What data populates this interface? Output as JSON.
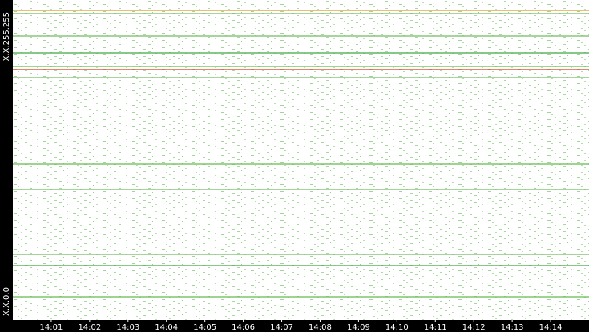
{
  "chart_data": {
    "type": "line",
    "xlim": [
      840,
      855
    ],
    "xticks": [
      {
        "value": 841,
        "label": "14:01"
      },
      {
        "value": 842,
        "label": "14:02"
      },
      {
        "value": 843,
        "label": "14:03"
      },
      {
        "value": 844,
        "label": "14:04"
      },
      {
        "value": 845,
        "label": "14:05"
      },
      {
        "value": 846,
        "label": "14:06"
      },
      {
        "value": 847,
        "label": "14:07"
      },
      {
        "value": 848,
        "label": "14:08"
      },
      {
        "value": 849,
        "label": "14:09"
      },
      {
        "value": 850,
        "label": "14:10"
      },
      {
        "value": 851,
        "label": "14:11"
      },
      {
        "value": 852,
        "label": "14:12"
      },
      {
        "value": 853,
        "label": "14:13"
      },
      {
        "value": 854,
        "label": "14:14"
      }
    ],
    "ylim": [
      0,
      65535
    ],
    "yticks": [
      {
        "value": 65535,
        "label": "X.X.255.255"
      },
      {
        "value": 0,
        "label": "X.X.0.0"
      }
    ],
    "bands": [
      {
        "value": 63405,
        "color": "#e0a030"
      },
      {
        "value": 62750,
        "color": "#7cc06c"
      },
      {
        "value": 58162,
        "color": "#7cc06c"
      },
      {
        "value": 54722,
        "color": "#4caf50"
      },
      {
        "value": 51936,
        "color": "#6cbf5c"
      },
      {
        "value": 51281,
        "color": "#e04a2a"
      },
      {
        "value": 49643,
        "color": "#7cc06c"
      },
      {
        "value": 31948,
        "color": "#6cbf5c"
      },
      {
        "value": 26706,
        "color": "#7cc06c"
      },
      {
        "value": 13435,
        "color": "#7cc06c"
      },
      {
        "value": 11141,
        "color": "#4caf50"
      },
      {
        "value": 4751,
        "color": "#6cbf5c"
      }
    ]
  }
}
